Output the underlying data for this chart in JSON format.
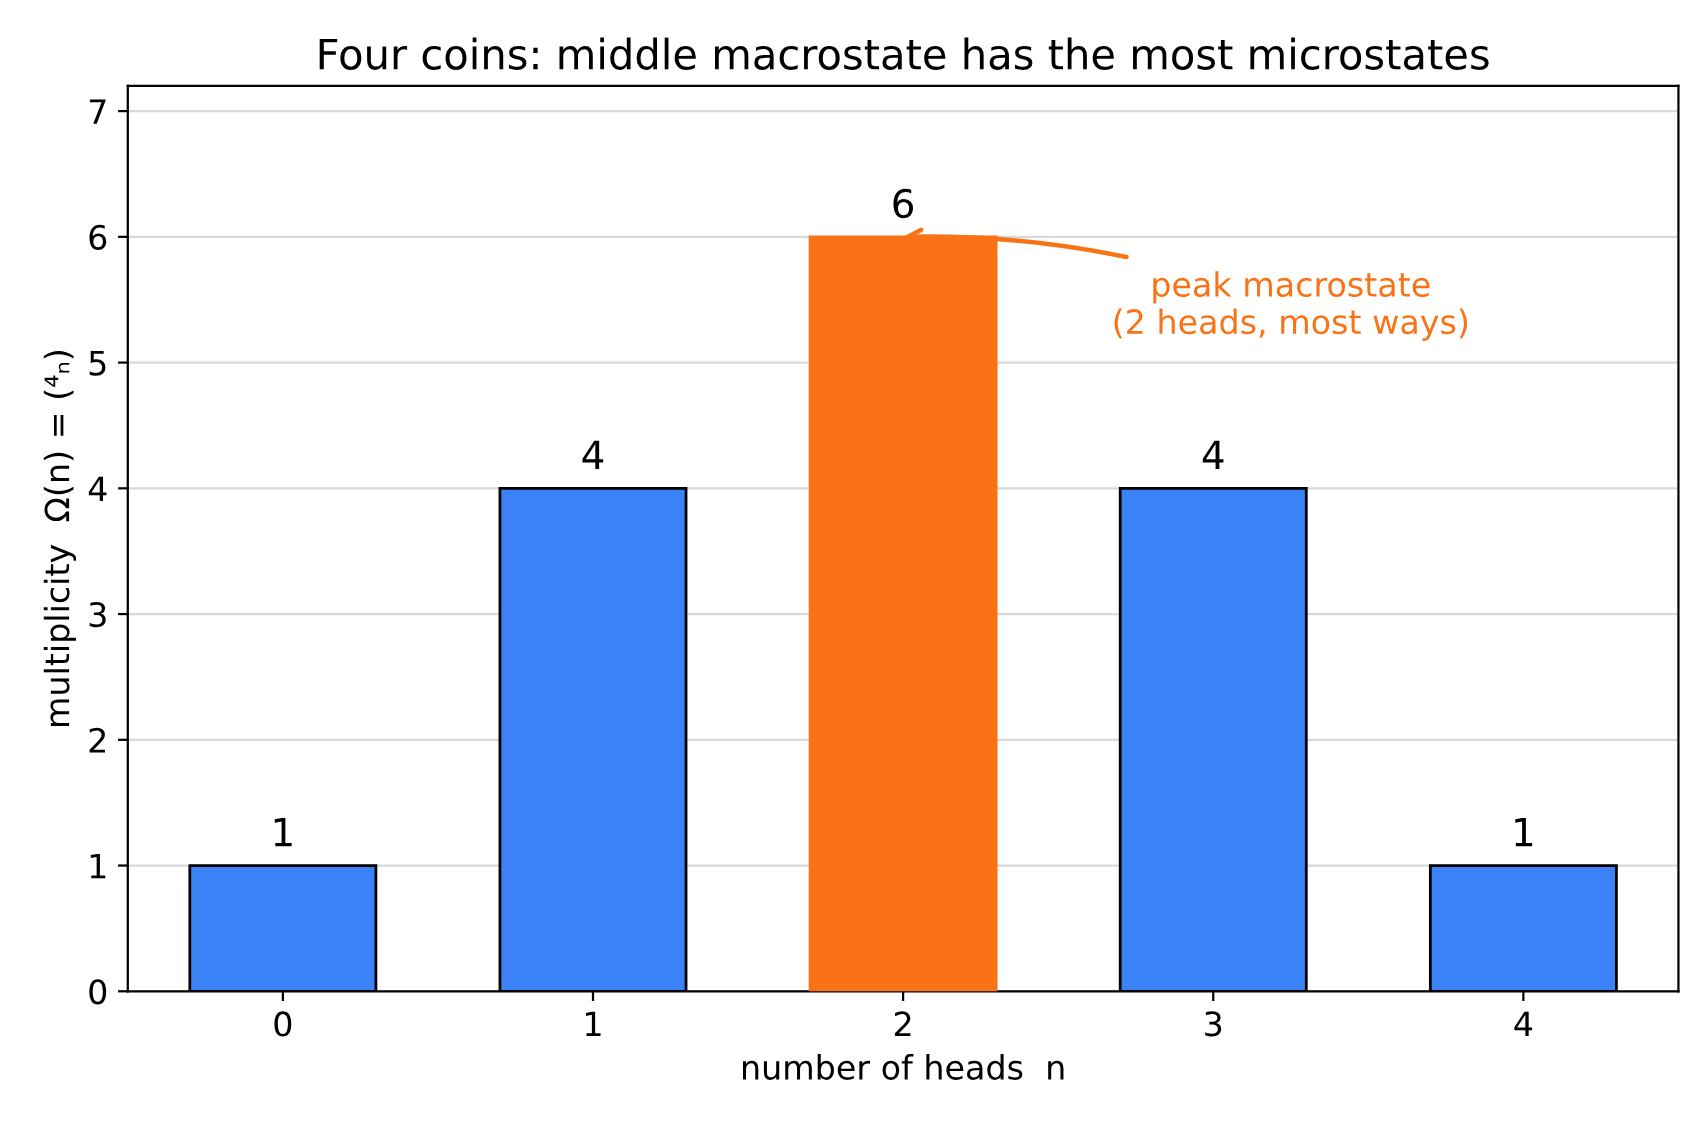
{
  "chart_data": {
    "type": "bar",
    "title": "Four coins: middle macrostate has the most microstates",
    "xlabel": "number of heads  n",
    "ylabel": "multiplicity  Ω(n) = (⁴ₙ)",
    "categories": [
      "0",
      "1",
      "2",
      "3",
      "4"
    ],
    "values": [
      1,
      4,
      6,
      4,
      1
    ],
    "colors": [
      "#3b82f6",
      "#3b82f6",
      "#f97316",
      "#3b82f6",
      "#3b82f6"
    ],
    "ylim": [
      0,
      7.2
    ],
    "yticks": [
      0,
      1,
      2,
      3,
      4,
      5,
      6,
      7
    ],
    "grid": "y",
    "data_labels": true,
    "annotations": [
      {
        "text": "peak macrostate\n(2 heads, most ways)",
        "x": "2",
        "y": 6
      }
    ]
  }
}
